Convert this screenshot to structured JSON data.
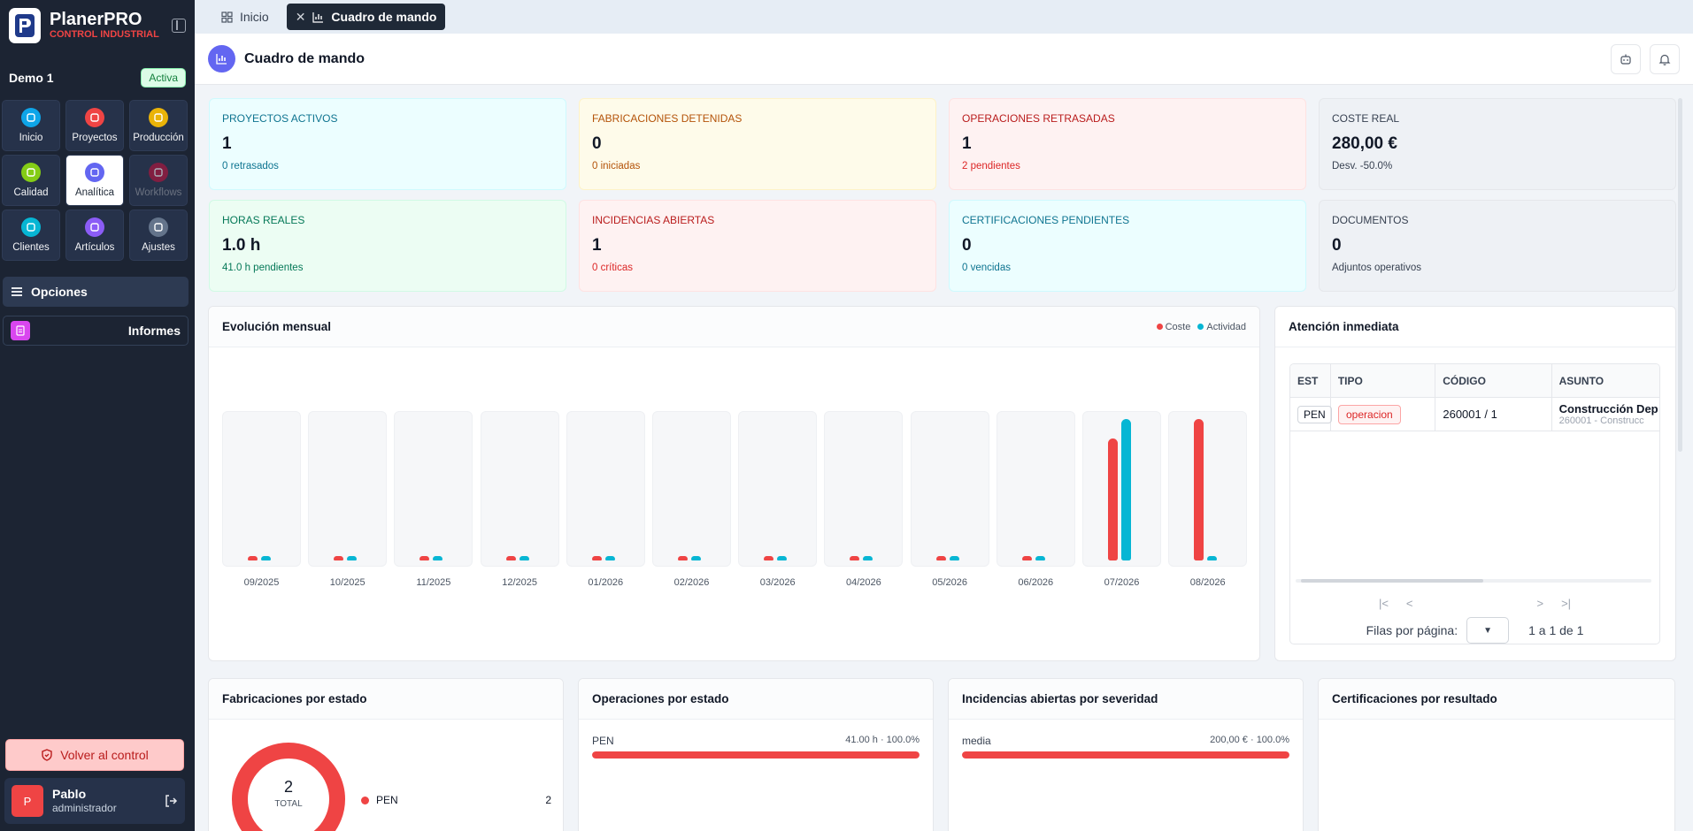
{
  "brand": {
    "name": "PlanerPRO",
    "subtitle": "CONTROL INDUSTRIAL"
  },
  "org": {
    "name": "Demo 1",
    "status": "Activa"
  },
  "modules": [
    {
      "label": "Inicio",
      "icon": "grid-icon",
      "color": "#0ea5e9",
      "state": "normal"
    },
    {
      "label": "Proyectos",
      "icon": "folder-icon",
      "color": "#ef4444",
      "state": "normal"
    },
    {
      "label": "Producción",
      "icon": "production-icon",
      "color": "#eab308",
      "state": "normal"
    },
    {
      "label": "Calidad",
      "icon": "quality-icon",
      "color": "#84cc16",
      "state": "normal"
    },
    {
      "label": "Analítica",
      "icon": "chart-icon",
      "color": "#6366f1",
      "state": "active"
    },
    {
      "label": "Workflows",
      "icon": "workflow-icon",
      "color": "#be123c",
      "state": "disabled"
    },
    {
      "label": "Clientes",
      "icon": "users-icon",
      "color": "#06b6d4",
      "state": "normal"
    },
    {
      "label": "Artículos",
      "icon": "box-icon",
      "color": "#8b5cf6",
      "state": "normal"
    },
    {
      "label": "Ajustes",
      "icon": "gear-icon",
      "color": "#64748b",
      "state": "normal"
    }
  ],
  "sidebar": {
    "options_label": "Opciones",
    "reports_label": "Informes",
    "back_label": "Volver al control"
  },
  "user": {
    "initial": "P",
    "name": "Pablo",
    "role": "administrador"
  },
  "tabs": [
    {
      "label": "Inicio",
      "active": false
    },
    {
      "label": "Cuadro de mando",
      "active": true
    }
  ],
  "page": {
    "title": "Cuadro de mando"
  },
  "cards": [
    {
      "label": "PROYECTOS ACTIVOS",
      "value": "1",
      "sub": "0 retrasados",
      "tone": "cyan"
    },
    {
      "label": "FABRICACIONES DETENIDAS",
      "value": "0",
      "sub": "0 iniciadas",
      "tone": "amber"
    },
    {
      "label": "OPERACIONES RETRASADAS",
      "value": "1",
      "sub": "2 pendientes",
      "tone": "red"
    },
    {
      "label": "COSTE REAL",
      "value": "280,00 €",
      "sub": "Desv. -50.0%",
      "tone": "gray"
    },
    {
      "label": "HORAS REALES",
      "value": "1.0 h",
      "sub": "41.0 h pendientes",
      "tone": "green"
    },
    {
      "label": "INCIDENCIAS ABIERTAS",
      "value": "1",
      "sub": "0 críticas",
      "tone": "red"
    },
    {
      "label": "CERTIFICACIONES PENDIENTES",
      "value": "0",
      "sub": "0 vencidas",
      "tone": "cyan"
    },
    {
      "label": "DOCUMENTOS",
      "value": "0",
      "sub": "Adjuntos operativos",
      "tone": "gray"
    }
  ],
  "monthly": {
    "title": "Evolución mensual",
    "legend": [
      {
        "name": "Coste",
        "color": "#ef4444"
      },
      {
        "name": "Actividad",
        "color": "#06b6d4"
      }
    ]
  },
  "chart_data": {
    "type": "bar",
    "title": "Evolución mensual",
    "categories": [
      "09/2025",
      "10/2025",
      "11/2025",
      "12/2025",
      "01/2026",
      "02/2026",
      "03/2026",
      "04/2026",
      "05/2026",
      "06/2026",
      "07/2026",
      "08/2026"
    ],
    "series": [
      {
        "name": "Coste",
        "color": "#ef4444",
        "values": [
          0,
          0,
          0,
          0,
          0,
          0,
          0,
          0,
          0,
          0,
          0.86,
          1.0
        ]
      },
      {
        "name": "Actividad",
        "color": "#06b6d4",
        "values": [
          0,
          0,
          0,
          0,
          0,
          0,
          0,
          0,
          0,
          0,
          1.0,
          0
        ]
      }
    ],
    "ylim": [
      0,
      1
    ],
    "grid": false,
    "legend": "top-right"
  },
  "attention": {
    "title": "Atención inmediata",
    "columns": [
      "EST",
      "TIPO",
      "CÓDIGO",
      "ASUNTO"
    ],
    "rows": [
      {
        "est": "PEN",
        "tipo": "operacion",
        "codigo": "260001 / 1",
        "asunto": "Construcción Dep",
        "asunto_sub": "260001 - Construcc"
      }
    ],
    "rows_per_page_label": "Filas por página:",
    "range_label": "1 a 1 de 1"
  },
  "fab_estado": {
    "title": "Fabricaciones por estado",
    "total": "2",
    "total_label": "TOTAL",
    "items": [
      {
        "name": "PEN",
        "count": "2",
        "color": "#ef4444"
      }
    ]
  },
  "ops_estado": {
    "title": "Operaciones por estado",
    "items": [
      {
        "name": "PEN",
        "value": "41.00 h · 100.0%",
        "pct": 100
      }
    ]
  },
  "incid_sev": {
    "title": "Incidencias abiertas por severidad",
    "items": [
      {
        "name": "media",
        "value": "200,00 € · 100.0%",
        "pct": 100
      }
    ]
  },
  "cert_res": {
    "title": "Certificaciones por resultado"
  }
}
